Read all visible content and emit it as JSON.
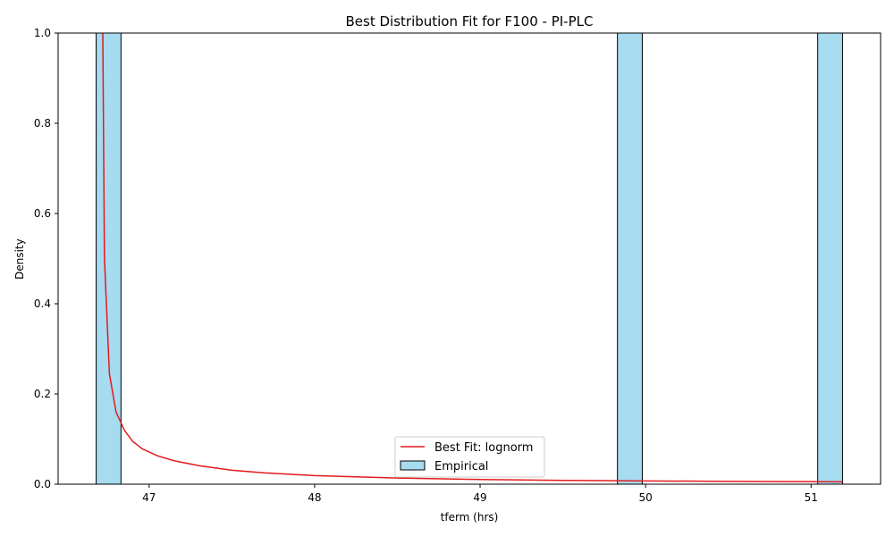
{
  "chart_data": {
    "type": "bar",
    "title": "Best Distribution Fit for F100 - PI-PLC",
    "xlabel": "tferm (hrs)",
    "ylabel": "Density",
    "xlim": [
      46.45,
      51.42
    ],
    "ylim": [
      0,
      1.0
    ],
    "xticks": [
      47,
      48,
      49,
      50,
      51
    ],
    "yticks": [
      0.0,
      0.2,
      0.4,
      0.6,
      0.8,
      1.0
    ],
    "xtick_labels": [
      "47",
      "48",
      "49",
      "50",
      "51"
    ],
    "ytick_labels": [
      "0.0",
      "0.2",
      "0.4",
      "0.6",
      "0.8",
      "1.0"
    ],
    "grid": false,
    "legend_position": "bottom-center",
    "histogram": {
      "name": "Empirical",
      "color": "#a6dbf0",
      "edge_color": "#000000",
      "bins": [
        {
          "x0": 46.68,
          "x1": 46.83,
          "density": 1.0
        },
        {
          "x0": 49.83,
          "x1": 49.98,
          "density": 1.0
        },
        {
          "x0": 51.04,
          "x1": 51.19,
          "density": 1.0
        }
      ]
    },
    "fit_line": {
      "name": "Best Fit: lognorm",
      "color": "#e31a1c",
      "x": [
        46.72,
        46.73,
        46.76,
        46.8,
        46.85,
        46.9,
        46.96,
        47.05,
        47.15,
        47.3,
        47.5,
        47.7,
        48.0,
        48.5,
        49.0,
        49.5,
        50.0,
        50.5,
        51.0,
        51.19
      ],
      "y": [
        1.0,
        0.5,
        0.245,
        0.16,
        0.12,
        0.095,
        0.078,
        0.063,
        0.052,
        0.041,
        0.031,
        0.025,
        0.019,
        0.0135,
        0.0105,
        0.0085,
        0.0072,
        0.0063,
        0.0056,
        0.0053
      ]
    }
  }
}
